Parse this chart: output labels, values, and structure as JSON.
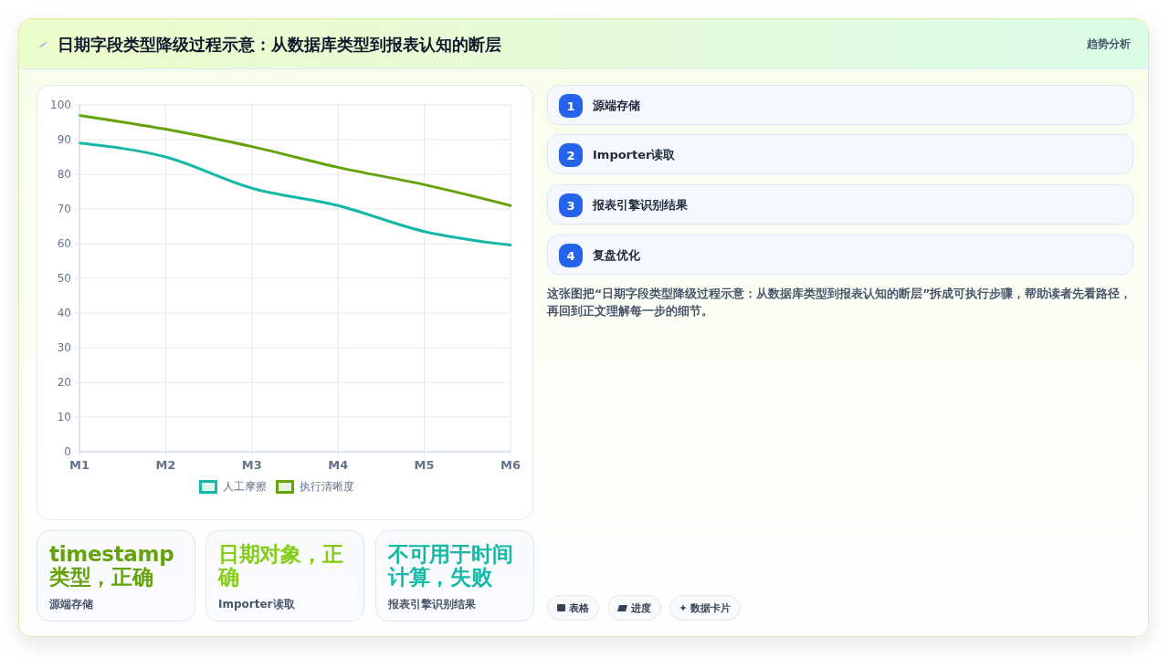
{
  "chart_data": {
    "type": "line",
    "title": "日期字段类型降级过程示意：从数据库类型到报表认知的断层",
    "subtitle": "趋势分析",
    "categories": [
      "M1",
      "M2",
      "M3",
      "M4",
      "M5",
      "M6"
    ],
    "series": [
      {
        "name": "人工摩擦",
        "color": "#14b8a6",
        "values": [
          89,
          85,
          76,
          71,
          63.5,
          59.6
        ]
      },
      {
        "name": "执行清晰度",
        "color": "#65a30d",
        "values": [
          97,
          93,
          88,
          82,
          77,
          71
        ]
      }
    ],
    "ylim": [
      0,
      100
    ],
    "yticks": [
      0,
      10,
      20,
      30,
      40,
      50,
      60,
      70,
      80,
      90,
      100
    ],
    "grid": true,
    "legend": "bottom",
    "marker": "none",
    "line_style": "solid",
    "annotations": [
      "1",
      "源端存储",
      "2",
      "Importer读取",
      "3",
      "报表引擎识别结果",
      "4",
      "复盘优化",
      "这张图把“日期字段类型降级过程示意：从数据库类型到报表认知的断层”拆成可执行步骤，帮助读者先看路径，再回到正文理解每一步的细节。",
      "timestamp 类型，正确",
      "源端存储",
      "日期对象，正确",
      "Importer读取",
      "不可用于时间计算，失败",
      "报表引擎识别结果",
      "表格",
      "进度",
      "数据卡片"
    ]
  }
}
